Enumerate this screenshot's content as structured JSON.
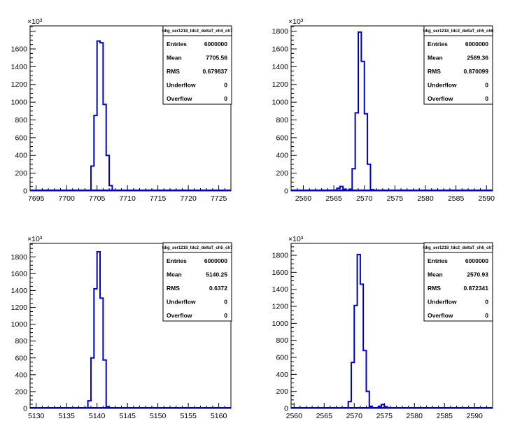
{
  "colors": {
    "line": "#0000cc",
    "axis": "#000000",
    "background": "#ffffff"
  },
  "chart_data": [
    {
      "type": "bar",
      "title": "tdig_ser1218_tdc2_deltaT_ch4_ch7",
      "y_exponent_label": "×10³",
      "xlim": [
        7694,
        7727
      ],
      "ylim": [
        0,
        1860
      ],
      "x_ticks": [
        7695,
        7700,
        7705,
        7710,
        7715,
        7720,
        7725
      ],
      "y_ticks": [
        0,
        200,
        400,
        600,
        800,
        1000,
        1200,
        1400,
        1600
      ],
      "bin_width": 0.5,
      "bins": [
        [
          7703.5,
          5
        ],
        [
          7704.0,
          280
        ],
        [
          7704.5,
          850
        ],
        [
          7705.0,
          1690
        ],
        [
          7705.5,
          1670
        ],
        [
          7706.0,
          975
        ],
        [
          7706.5,
          400
        ],
        [
          7707.0,
          60
        ],
        [
          7707.5,
          5
        ]
      ],
      "stats": [
        {
          "label": "Entries",
          "value": "6000000"
        },
        {
          "label": "Mean",
          "value": "7705.56"
        },
        {
          "label": "RMS",
          "value": "0.679837"
        },
        {
          "label": "Underflow",
          "value": "0"
        },
        {
          "label": "Overflow",
          "value": "0"
        }
      ]
    },
    {
      "type": "bar",
      "title": "tdig_ser1218_tdc2_deltaT_ch5_ch6",
      "y_exponent_label": "×10³",
      "xlim": [
        2558,
        2591
      ],
      "ylim": [
        0,
        1860
      ],
      "x_ticks": [
        2560,
        2565,
        2570,
        2575,
        2580,
        2585,
        2590
      ],
      "y_ticks": [
        0,
        200,
        400,
        600,
        800,
        1000,
        1200,
        1400,
        1600,
        1800
      ],
      "bin_width": 0.5,
      "bins": [
        [
          2565.0,
          10
        ],
        [
          2565.5,
          30
        ],
        [
          2566.0,
          50
        ],
        [
          2566.5,
          20
        ],
        [
          2567.0,
          5
        ],
        [
          2567.5,
          20
        ],
        [
          2568.0,
          250
        ],
        [
          2568.5,
          880
        ],
        [
          2569.0,
          1790
        ],
        [
          2569.5,
          1460
        ],
        [
          2570.0,
          870
        ],
        [
          2570.5,
          300
        ],
        [
          2571.0,
          15
        ]
      ],
      "stats": [
        {
          "label": "Entries",
          "value": "6000000"
        },
        {
          "label": "Mean",
          "value": "2569.36"
        },
        {
          "label": "RMS",
          "value": "0.870099"
        },
        {
          "label": "Underflow",
          "value": "0"
        },
        {
          "label": "Overflow",
          "value": "0"
        }
      ]
    },
    {
      "type": "bar",
      "title": "tdig_ser1218_tdc2_deltaT_ch5_ch7",
      "y_exponent_label": "×10³",
      "xlim": [
        5129,
        5162
      ],
      "ylim": [
        0,
        1960
      ],
      "x_ticks": [
        5130,
        5135,
        5140,
        5145,
        5150,
        5155,
        5160
      ],
      "y_ticks": [
        0,
        200,
        400,
        600,
        800,
        1000,
        1200,
        1400,
        1600,
        1800
      ],
      "bin_width": 0.5,
      "bins": [
        [
          5138.0,
          5
        ],
        [
          5138.5,
          90
        ],
        [
          5139.0,
          600
        ],
        [
          5139.5,
          1420
        ],
        [
          5140.0,
          1860
        ],
        [
          5140.5,
          1310
        ],
        [
          5141.0,
          575
        ],
        [
          5141.5,
          20
        ]
      ],
      "stats": [
        {
          "label": "Entries",
          "value": "6000000"
        },
        {
          "label": "Mean",
          "value": "5140.25"
        },
        {
          "label": "RMS",
          "value": "0.6372"
        },
        {
          "label": "Underflow",
          "value": "0"
        },
        {
          "label": "Overflow",
          "value": "0"
        }
      ]
    },
    {
      "type": "bar",
      "title": "tdig_ser1218_tdc2_deltaT_ch6_ch7",
      "y_exponent_label": "×10³",
      "xlim": [
        2559.5,
        2593
      ],
      "ylim": [
        0,
        1940
      ],
      "x_ticks": [
        2560,
        2565,
        2570,
        2575,
        2580,
        2585,
        2590
      ],
      "y_ticks": [
        0,
        200,
        400,
        600,
        800,
        1000,
        1200,
        1400,
        1600,
        1800
      ],
      "bin_width": 0.5,
      "bins": [
        [
          2568.5,
          5
        ],
        [
          2569.0,
          80
        ],
        [
          2569.5,
          540
        ],
        [
          2570.0,
          1210
        ],
        [
          2570.5,
          1810
        ],
        [
          2571.0,
          1460
        ],
        [
          2571.5,
          680
        ],
        [
          2572.0,
          200
        ],
        [
          2572.5,
          25
        ],
        [
          2573.0,
          5
        ],
        [
          2573.5,
          5
        ],
        [
          2574.0,
          25
        ],
        [
          2574.5,
          45
        ],
        [
          2575.0,
          20
        ],
        [
          2575.5,
          5
        ]
      ],
      "stats": [
        {
          "label": "Entries",
          "value": "6000000"
        },
        {
          "label": "Mean",
          "value": "2570.93"
        },
        {
          "label": "RMS",
          "value": "0.872341"
        },
        {
          "label": "Underflow",
          "value": "0"
        },
        {
          "label": "Overflow",
          "value": "0"
        }
      ]
    }
  ]
}
